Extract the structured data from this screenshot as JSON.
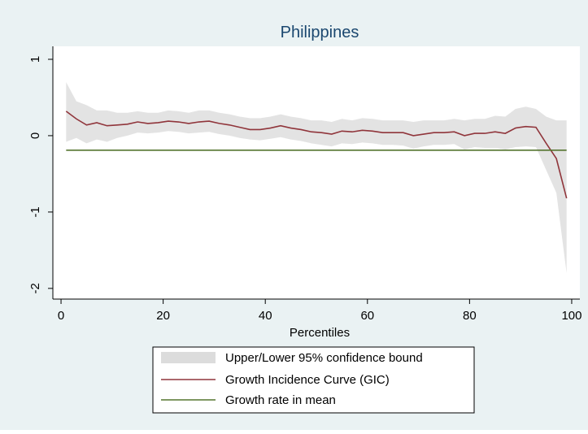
{
  "chart_data": {
    "type": "line",
    "title": "Philippines",
    "x_label": "Percentiles",
    "x": [
      1,
      3,
      5,
      7,
      9,
      11,
      13,
      15,
      17,
      19,
      21,
      23,
      25,
      27,
      29,
      31,
      33,
      35,
      37,
      39,
      41,
      43,
      45,
      47,
      49,
      51,
      53,
      55,
      57,
      59,
      61,
      63,
      65,
      67,
      69,
      71,
      73,
      75,
      77,
      79,
      81,
      83,
      85,
      87,
      89,
      91,
      93,
      95,
      97,
      99
    ],
    "series": [
      {
        "name": "Upper/Lower 95% confidence bound",
        "type": "band",
        "color": "#dcdcdc",
        "upper": [
          0.7,
          0.45,
          0.4,
          0.33,
          0.33,
          0.3,
          0.3,
          0.32,
          0.3,
          0.3,
          0.33,
          0.32,
          0.3,
          0.33,
          0.33,
          0.3,
          0.28,
          0.25,
          0.23,
          0.23,
          0.25,
          0.28,
          0.25,
          0.23,
          0.2,
          0.2,
          0.18,
          0.22,
          0.2,
          0.23,
          0.22,
          0.2,
          0.2,
          0.2,
          0.18,
          0.2,
          0.2,
          0.2,
          0.22,
          0.2,
          0.22,
          0.22,
          0.26,
          0.25,
          0.35,
          0.38,
          0.35,
          0.25,
          0.2,
          0.2
        ],
        "lower": [
          -0.08,
          -0.03,
          -0.1,
          -0.05,
          -0.08,
          -0.03,
          0,
          0.04,
          0.03,
          0.04,
          0.06,
          0.05,
          0.03,
          0.04,
          0.05,
          0.02,
          0,
          -0.03,
          -0.05,
          -0.06,
          -0.04,
          -0.02,
          -0.05,
          -0.07,
          -0.1,
          -0.12,
          -0.14,
          -0.1,
          -0.11,
          -0.09,
          -0.1,
          -0.12,
          -0.12,
          -0.13,
          -0.17,
          -0.14,
          -0.12,
          -0.12,
          -0.11,
          -0.18,
          -0.15,
          -0.16,
          -0.16,
          -0.18,
          -0.15,
          -0.14,
          -0.15,
          -0.45,
          -0.75,
          -1.8
        ]
      },
      {
        "name": "Growth Incidence Curve (GIC)",
        "type": "line",
        "color": "#90353b",
        "values": [
          0.32,
          0.22,
          0.14,
          0.17,
          0.13,
          0.14,
          0.15,
          0.18,
          0.16,
          0.17,
          0.19,
          0.18,
          0.16,
          0.18,
          0.19,
          0.16,
          0.14,
          0.11,
          0.08,
          0.08,
          0.1,
          0.13,
          0.1,
          0.08,
          0.05,
          0.04,
          0.02,
          0.06,
          0.05,
          0.07,
          0.06,
          0.04,
          0.04,
          0.04,
          0,
          0.02,
          0.04,
          0.04,
          0.05,
          0,
          0.03,
          0.03,
          0.05,
          0.03,
          0.1,
          0.12,
          0.11,
          -0.1,
          -0.3,
          -0.82
        ]
      },
      {
        "name": "Growth rate in mean",
        "type": "line",
        "color": "#55752f",
        "values": [
          -0.19,
          -0.19,
          -0.19,
          -0.19,
          -0.19,
          -0.19,
          -0.19,
          -0.19,
          -0.19,
          -0.19,
          -0.19,
          -0.19,
          -0.19,
          -0.19,
          -0.19,
          -0.19,
          -0.19,
          -0.19,
          -0.19,
          -0.19,
          -0.19,
          -0.19,
          -0.19,
          -0.19,
          -0.19,
          -0.19,
          -0.19,
          -0.19,
          -0.19,
          -0.19,
          -0.19,
          -0.19,
          -0.19,
          -0.19,
          -0.19,
          -0.19,
          -0.19,
          -0.19,
          -0.19,
          -0.19,
          -0.19,
          -0.19,
          -0.19,
          -0.19,
          -0.19,
          -0.19,
          -0.19,
          -0.19,
          -0.19,
          -0.19
        ]
      }
    ],
    "xlim": [
      -1.6,
      101.6
    ],
    "xticks": [
      0,
      20,
      40,
      60,
      80,
      100
    ],
    "ylim": [
      -2.14,
      1.17
    ],
    "yticks": [
      1,
      0,
      -1,
      -2
    ]
  }
}
